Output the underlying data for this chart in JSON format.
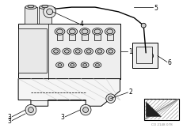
{
  "bg_color": "#ffffff",
  "lc": "#000000",
  "figsize": [
    2.32,
    1.62
  ],
  "dpi": 100,
  "body_face": "#f0f0f0",
  "body_edge": "#000000",
  "bracket_face": "#f8f8f8",
  "shadow_face": "#d8d8d8"
}
